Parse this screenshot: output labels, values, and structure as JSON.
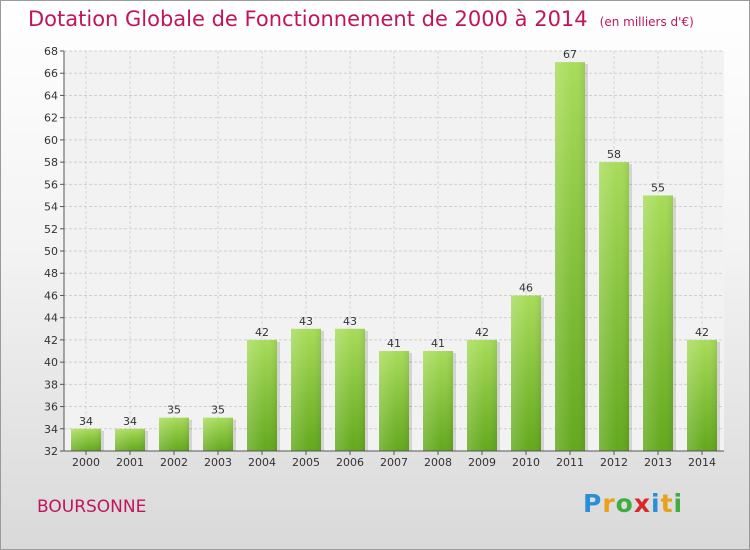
{
  "title": "Dotation Globale de Fonctionnement de 2000 à 2014",
  "unit": "(en milliers d'€)",
  "commune": "BOURSONNE",
  "brand": {
    "letters": [
      "P",
      "r",
      "o",
      "x",
      "i",
      "t",
      "i"
    ],
    "colors": [
      "#2a8fd6",
      "#e8a21a",
      "#3fae3f",
      "#d62a2a",
      "#2a8fd6",
      "#e8a21a",
      "#3fae3f"
    ]
  },
  "colors": {
    "bar": "#7cbf2a",
    "bar_light": "#a8dc5a",
    "accent": "#c0155d"
  },
  "chart_data": {
    "type": "bar",
    "title": "Dotation Globale de Fonctionnement de 2000 à 2014",
    "subtitle": "(en milliers d'€)",
    "categories": [
      "2000",
      "2001",
      "2002",
      "2003",
      "2004",
      "2005",
      "2006",
      "2007",
      "2008",
      "2009",
      "2010",
      "2011",
      "2012",
      "2013",
      "2014"
    ],
    "values": [
      34,
      34,
      35,
      35,
      42,
      43,
      43,
      41,
      41,
      42,
      46,
      67,
      58,
      55,
      42
    ],
    "ylim": [
      32,
      68
    ],
    "yticks": [
      32,
      34,
      36,
      38,
      40,
      42,
      44,
      46,
      48,
      50,
      52,
      54,
      56,
      58,
      60,
      62,
      64,
      66,
      68
    ],
    "grid": true,
    "xlabel": "",
    "ylabel": ""
  }
}
